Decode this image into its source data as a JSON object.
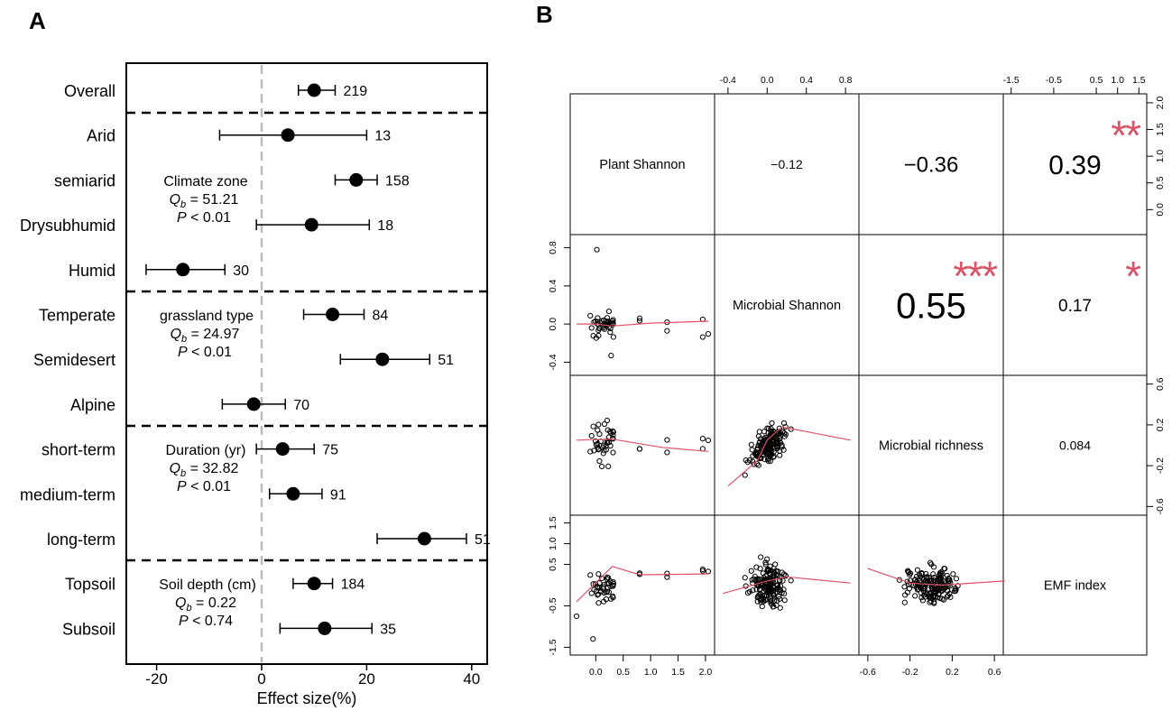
{
  "panel_labels": {
    "a": "A",
    "b": "B"
  },
  "colors": {
    "star": "#d9536b",
    "loess": "#e0506a",
    "ref_line": "#bbbbbb"
  },
  "chart_data": [
    {
      "type": "forest",
      "panel": "A",
      "xlabel": "Effect size(%)",
      "xlim": [
        -25,
        43
      ],
      "xticks": [
        -20,
        0,
        20,
        40
      ],
      "rows": [
        {
          "label": "Overall",
          "mean": 10,
          "lo": 7,
          "hi": 14,
          "n": "219"
        },
        {
          "label": "Arid",
          "mean": 5,
          "lo": -8,
          "hi": 20,
          "n": "13"
        },
        {
          "label": "semiarid",
          "mean": 18,
          "lo": 14,
          "hi": 22,
          "n": "158"
        },
        {
          "label": "Drysubhumid",
          "mean": 9.5,
          "lo": -1,
          "hi": 20.5,
          "n": "18"
        },
        {
          "label": "Humid",
          "mean": -15,
          "lo": -22,
          "hi": -7,
          "n": "30"
        },
        {
          "label": "Temperate",
          "mean": 13.5,
          "lo": 8,
          "hi": 19.5,
          "n": "84"
        },
        {
          "label": "Semidesert",
          "mean": 23,
          "lo": 15,
          "hi": 32,
          "n": "51"
        },
        {
          "label": "Alpine",
          "mean": -1.5,
          "lo": -7.5,
          "hi": 4.5,
          "n": "70"
        },
        {
          "label": "short-term",
          "mean": 4,
          "lo": -1,
          "hi": 10,
          "n": "75"
        },
        {
          "label": "medium-term",
          "mean": 6,
          "lo": 1.5,
          "hi": 11.5,
          "n": "91"
        },
        {
          "label": "long-term",
          "mean": 31,
          "lo": 22,
          "hi": 39,
          "n": "51"
        },
        {
          "label": "Topsoil",
          "mean": 10,
          "lo": 6,
          "hi": 13.5,
          "n": "184"
        },
        {
          "label": "Subsoil",
          "mean": 12,
          "lo": 3.5,
          "hi": 21,
          "n": "35"
        }
      ],
      "annotations": [
        {
          "title": "Climate zone",
          "qb": "= 51.21",
          "p": "< 0.01"
        },
        {
          "title": "grassland type",
          "qb": "= 24.97",
          "p": "< 0.01"
        },
        {
          "title": "Duration (yr)",
          "qb": "= 32.82",
          "p": "< 0.01"
        },
        {
          "title": "Soil depth (cm)",
          "qb": "= 0.22",
          "p": "< 0.74"
        }
      ],
      "stat_symbols": {
        "q": "Q",
        "q_sub": "b",
        "p": "P"
      }
    },
    {
      "type": "scatter_matrix",
      "panel": "B",
      "variables": [
        "Plant Shannon",
        "Microbial Shannon",
        "Microbial richness",
        "EMF index"
      ],
      "correlations": [
        {
          "row": 0,
          "col": 1,
          "r": "−0.12",
          "stars": ""
        },
        {
          "row": 0,
          "col": 2,
          "r": "−0.36",
          "stars": ""
        },
        {
          "row": 0,
          "col": 3,
          "r": "0.39",
          "stars": "**"
        },
        {
          "row": 1,
          "col": 2,
          "r": "0.55",
          "stars": "***"
        },
        {
          "row": 1,
          "col": 3,
          "r": "0.17",
          "stars": "*"
        },
        {
          "row": 2,
          "col": 3,
          "r": "0.084",
          "stars": ""
        }
      ],
      "axis_ranges": {
        "plant_shannon": [
          -0.4,
          2.1
        ],
        "microbial_shannon": [
          -0.5,
          0.9
        ],
        "microbial_richness": [
          -0.65,
          0.65
        ],
        "emf_index": [
          -1.6,
          1.6
        ]
      },
      "axes": {
        "top_col2": [
          "-0.4",
          "0.0",
          "0.4",
          "0.8"
        ],
        "top_col4": [
          "-1.5",
          "-0.5",
          "0.5",
          "1.0",
          "1.5"
        ],
        "right_row1": [
          "2.0",
          "1.5",
          "1.0",
          "0.5",
          "0.0"
        ],
        "right_row3": [
          "0.6",
          "0.2",
          "-0.2",
          "-0.6"
        ],
        "left_row2": [
          "0.8",
          "0.4",
          "0.0",
          "-0.4"
        ],
        "left_row4": [
          "1.5",
          "1.0",
          "0.5",
          "-0.5",
          "-1.5"
        ],
        "bottom_col1": [
          "0.0",
          "0.5",
          "1.0",
          "1.5",
          "2.0"
        ],
        "bottom_col3": [
          "-0.6",
          "-0.2",
          "0.2",
          "0.6"
        ]
      }
    }
  ]
}
